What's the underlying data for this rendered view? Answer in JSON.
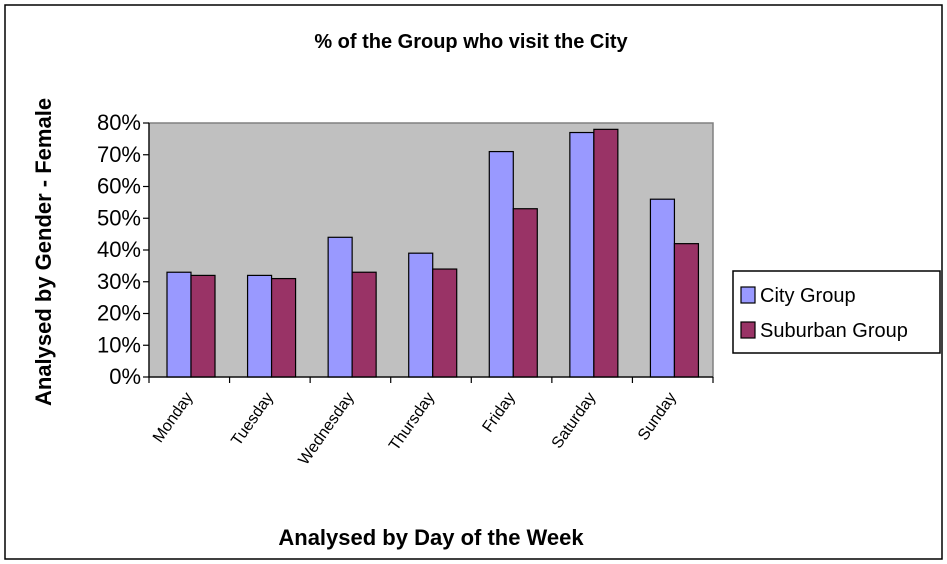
{
  "chart_data": {
    "type": "bar",
    "title": "% of the Group who visit the City",
    "xlabel": "Analysed by Day of the Week",
    "ylabel": "Analysed by Gender - Female",
    "categories": [
      "Monday",
      "Tuesday",
      "Wednesday",
      "Thursday",
      "Friday",
      "Saturday",
      "Sunday"
    ],
    "series": [
      {
        "name": "City Group",
        "values": [
          33,
          32,
          44,
          39,
          71,
          77,
          56
        ]
      },
      {
        "name": "Suburban Group",
        "values": [
          32,
          31,
          33,
          34,
          53,
          78,
          42
        ]
      }
    ],
    "ylim": [
      0,
      80
    ],
    "yticks": [
      0,
      10,
      20,
      30,
      40,
      50,
      60,
      70,
      80
    ],
    "ytick_suffix": "%",
    "grid": false,
    "plot_background": "#c0c0c0",
    "legend_position": "right",
    "colors": {
      "City Group": "#9999ff",
      "Suburban Group": "#993366"
    }
  }
}
